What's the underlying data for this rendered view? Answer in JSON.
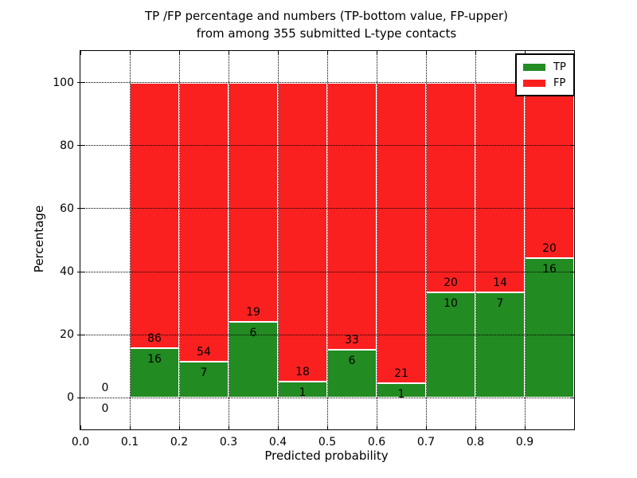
{
  "chart_data": {
    "type": "bar",
    "stacked": true,
    "title_line1": "TP /FP percentage and numbers (TP-bottom value, FP-upper)",
    "title_line2": "from among 355 submitted L-type contacts",
    "xlabel": "Predicted probability",
    "ylabel": "Percentage",
    "total_submitted": 355,
    "xlim": [
      0.0,
      1.0
    ],
    "ylim": [
      -10,
      110
    ],
    "x_tick_values": [
      0.0,
      0.1,
      0.2,
      0.3,
      0.4,
      0.5,
      0.6,
      0.7,
      0.8,
      0.9
    ],
    "x_tick_labels": [
      "0.0",
      "0.1",
      "0.2",
      "0.3",
      "0.4",
      "0.5",
      "0.6",
      "0.7",
      "0.8",
      "0.9"
    ],
    "y_tick_values": [
      0,
      20,
      40,
      60,
      80,
      100
    ],
    "y_tick_labels": [
      "0",
      "20",
      "40",
      "60",
      "80",
      "100"
    ],
    "grid": {
      "style": "dotted",
      "color": "#000000",
      "on": true
    },
    "colors": {
      "tp": "#228b22",
      "fp": "#fb2020",
      "bar_edge": "#ffffff"
    },
    "legend": {
      "position": "upper right",
      "entries": [
        {
          "label": "TP",
          "color": "#228b22"
        },
        {
          "label": "FP",
          "color": "#fb2020"
        }
      ]
    },
    "bins": [
      {
        "x_start": 0.0,
        "x_end": 0.1,
        "tp_count": 0,
        "fp_count": 0,
        "tp_pct": 0,
        "fp_pct": 0
      },
      {
        "x_start": 0.1,
        "x_end": 0.2,
        "tp_count": 16,
        "fp_count": 86,
        "tp_pct": 15.69,
        "fp_pct": 84.31
      },
      {
        "x_start": 0.2,
        "x_end": 0.3,
        "tp_count": 7,
        "fp_count": 54,
        "tp_pct": 11.48,
        "fp_pct": 88.52
      },
      {
        "x_start": 0.3,
        "x_end": 0.4,
        "tp_count": 6,
        "fp_count": 19,
        "tp_pct": 24.0,
        "fp_pct": 76.0
      },
      {
        "x_start": 0.4,
        "x_end": 0.5,
        "tp_count": 1,
        "fp_count": 18,
        "tp_pct": 5.26,
        "fp_pct": 94.74
      },
      {
        "x_start": 0.5,
        "x_end": 0.6,
        "tp_count": 6,
        "fp_count": 33,
        "tp_pct": 15.38,
        "fp_pct": 84.62
      },
      {
        "x_start": 0.6,
        "x_end": 0.7,
        "tp_count": 1,
        "fp_count": 21,
        "tp_pct": 4.55,
        "fp_pct": 95.45
      },
      {
        "x_start": 0.7,
        "x_end": 0.8,
        "tp_count": 10,
        "fp_count": 20,
        "tp_pct": 33.33,
        "fp_pct": 66.67
      },
      {
        "x_start": 0.8,
        "x_end": 0.9,
        "tp_count": 7,
        "fp_count": 14,
        "tp_pct": 33.33,
        "fp_pct": 66.67
      },
      {
        "x_start": 0.9,
        "x_end": 1.0,
        "tp_count": 16,
        "fp_count": 20,
        "tp_pct": 44.44,
        "fp_pct": 55.56
      }
    ]
  }
}
